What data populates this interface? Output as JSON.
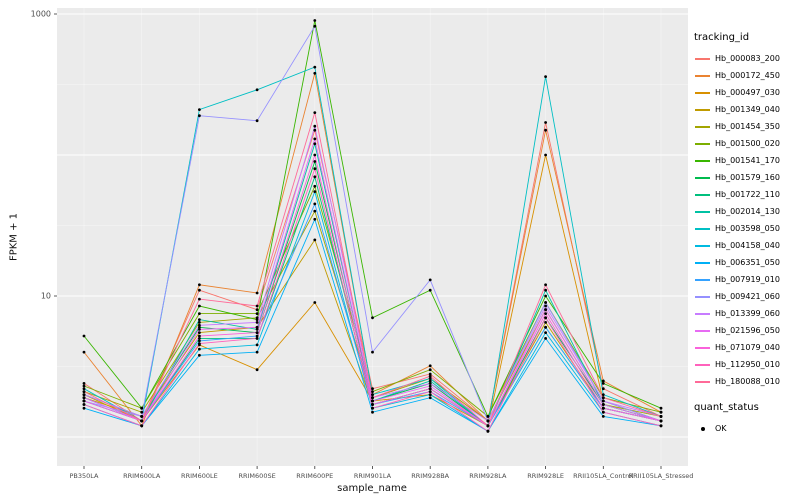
{
  "panel": {
    "bg": "#EBEBEB",
    "grid": "#FFFFFF",
    "tick_color": "#333333",
    "tick_label_color": "#4D4D4D"
  },
  "legend": {
    "tracking_title": "tracking_id",
    "quant_title": "quant_status",
    "quant_entries": [
      {
        "label": "OK"
      }
    ]
  },
  "chart_data": {
    "type": "line",
    "title": "",
    "xlabel": "sample_name",
    "ylabel": "FPKM + 1",
    "y_scale": "log10",
    "ylim": [
      1,
      1000
    ],
    "y_ticks": [
      {
        "label": "1000",
        "value": 1000
      },
      {
        "label": "10",
        "value": 10
      }
    ],
    "grid": true,
    "legend_position": "right",
    "point_color": "#000000",
    "quant_status": "OK",
    "categories": [
      "PB350LA",
      "RRIM600LA",
      "RRIM600LE",
      "RRIM600SE",
      "RRIM600PE",
      "RRIM901LA",
      "RRIM928BA",
      "RRIM928LA",
      "RRIM928LE",
      "RRII105LA_Control",
      "RRII105LA_Stressed"
    ],
    "series": [
      {
        "name": "Hb_000083_200",
        "color": "#F8766D",
        "values": [
          2.4,
          1.3,
          11,
          8.0,
          150,
          2.2,
          2.8,
          1.3,
          170,
          2.2,
          1.4
        ]
      },
      {
        "name": "Hb_000172_450",
        "color": "#EA8331",
        "values": [
          4.0,
          1.2,
          12,
          10.5,
          380,
          2.0,
          3.2,
          1.3,
          150,
          2.5,
          1.5
        ]
      },
      {
        "name": "Hb_000497_030",
        "color": "#D89000",
        "values": [
          2.0,
          1.3,
          4.5,
          3.0,
          9,
          1.8,
          2.0,
          1.2,
          100,
          1.8,
          1.3
        ]
      },
      {
        "name": "Hb_001349_040",
        "color": "#C09B00",
        "values": [
          1.9,
          1.4,
          5.5,
          6.0,
          25,
          1.7,
          2.2,
          1.2,
          6.5,
          1.6,
          1.3
        ]
      },
      {
        "name": "Hb_001454_350",
        "color": "#A3A500",
        "values": [
          2.1,
          1.5,
          6.5,
          7.0,
          40,
          1.9,
          2.6,
          1.3,
          8.0,
          1.7,
          1.4
        ]
      },
      {
        "name": "Hb_001500_020",
        "color": "#7CAE00",
        "values": [
          2.3,
          1.6,
          7.5,
          7.5,
          60,
          2.1,
          3.0,
          1.4,
          9.0,
          1.9,
          1.5
        ]
      },
      {
        "name": "Hb_001541_170",
        "color": "#39B600",
        "values": [
          5.2,
          1.6,
          8.5,
          6.8,
          900,
          7.0,
          11,
          1.4,
          10,
          2.4,
          1.6
        ]
      },
      {
        "name": "Hb_001579_160",
        "color": "#00BB4E",
        "values": [
          2.0,
          1.4,
          6.0,
          5.5,
          90,
          1.8,
          2.4,
          1.2,
          7.0,
          1.7,
          1.3
        ]
      },
      {
        "name": "Hb_001722_110",
        "color": "#00BF7D",
        "values": [
          1.8,
          1.3,
          5.0,
          5.0,
          70,
          1.7,
          2.2,
          1.2,
          6.0,
          1.6,
          1.3
        ]
      },
      {
        "name": "Hb_002014_130",
        "color": "#00C1A3",
        "values": [
          1.9,
          1.3,
          6.8,
          5.8,
          120,
          1.8,
          2.5,
          1.2,
          11,
          1.7,
          1.3
        ]
      },
      {
        "name": "Hb_003598_050",
        "color": "#00BFC4",
        "values": [
          2.2,
          1.3,
          210,
          290,
          420,
          2.0,
          2.6,
          1.2,
          360,
          2.0,
          1.4
        ]
      },
      {
        "name": "Hb_004158_040",
        "color": "#00BAE0",
        "values": [
          1.7,
          1.2,
          4.2,
          4.5,
          55,
          1.6,
          2.0,
          1.1,
          5.5,
          1.5,
          1.2
        ]
      },
      {
        "name": "Hb_006351_050",
        "color": "#00B0F6",
        "values": [
          1.6,
          1.2,
          3.8,
          4.0,
          35,
          1.5,
          1.9,
          1.1,
          5.0,
          1.4,
          1.2
        ]
      },
      {
        "name": "Hb_007919_010",
        "color": "#35A2FF",
        "values": [
          1.8,
          1.3,
          4.8,
          5.2,
          45,
          1.7,
          2.1,
          1.2,
          6.0,
          1.6,
          1.3
        ]
      },
      {
        "name": "Hb_009421_060",
        "color": "#9590FF",
        "values": [
          1.8,
          1.4,
          190,
          175,
          820,
          4.0,
          13,
          1.3,
          9.0,
          1.8,
          1.3
        ]
      },
      {
        "name": "Hb_013399_060",
        "color": "#C77CFF",
        "values": [
          2.0,
          1.4,
          6.2,
          6.5,
          160,
          1.9,
          2.4,
          1.3,
          8.5,
          1.8,
          1.4
        ]
      },
      {
        "name": "Hb_021596_050",
        "color": "#E76BF3",
        "values": [
          1.9,
          1.3,
          5.8,
          6.0,
          130,
          1.8,
          2.3,
          1.2,
          8.0,
          1.7,
          1.3
        ]
      },
      {
        "name": "Hb_071079_040",
        "color": "#FA62DB",
        "values": [
          1.8,
          1.3,
          5.2,
          5.5,
          100,
          1.7,
          2.2,
          1.2,
          7.5,
          1.6,
          1.3
        ]
      },
      {
        "name": "Hb_112950_010",
        "color": "#FF62BC",
        "values": [
          1.7,
          1.2,
          4.6,
          5.0,
          80,
          1.6,
          2.1,
          1.1,
          7.0,
          1.5,
          1.2
        ]
      },
      {
        "name": "Hb_180088_010",
        "color": "#FF6A98",
        "values": [
          2.1,
          1.3,
          9.5,
          8.5,
          200,
          1.9,
          2.7,
          1.2,
          12,
          1.9,
          1.4
        ]
      }
    ]
  }
}
